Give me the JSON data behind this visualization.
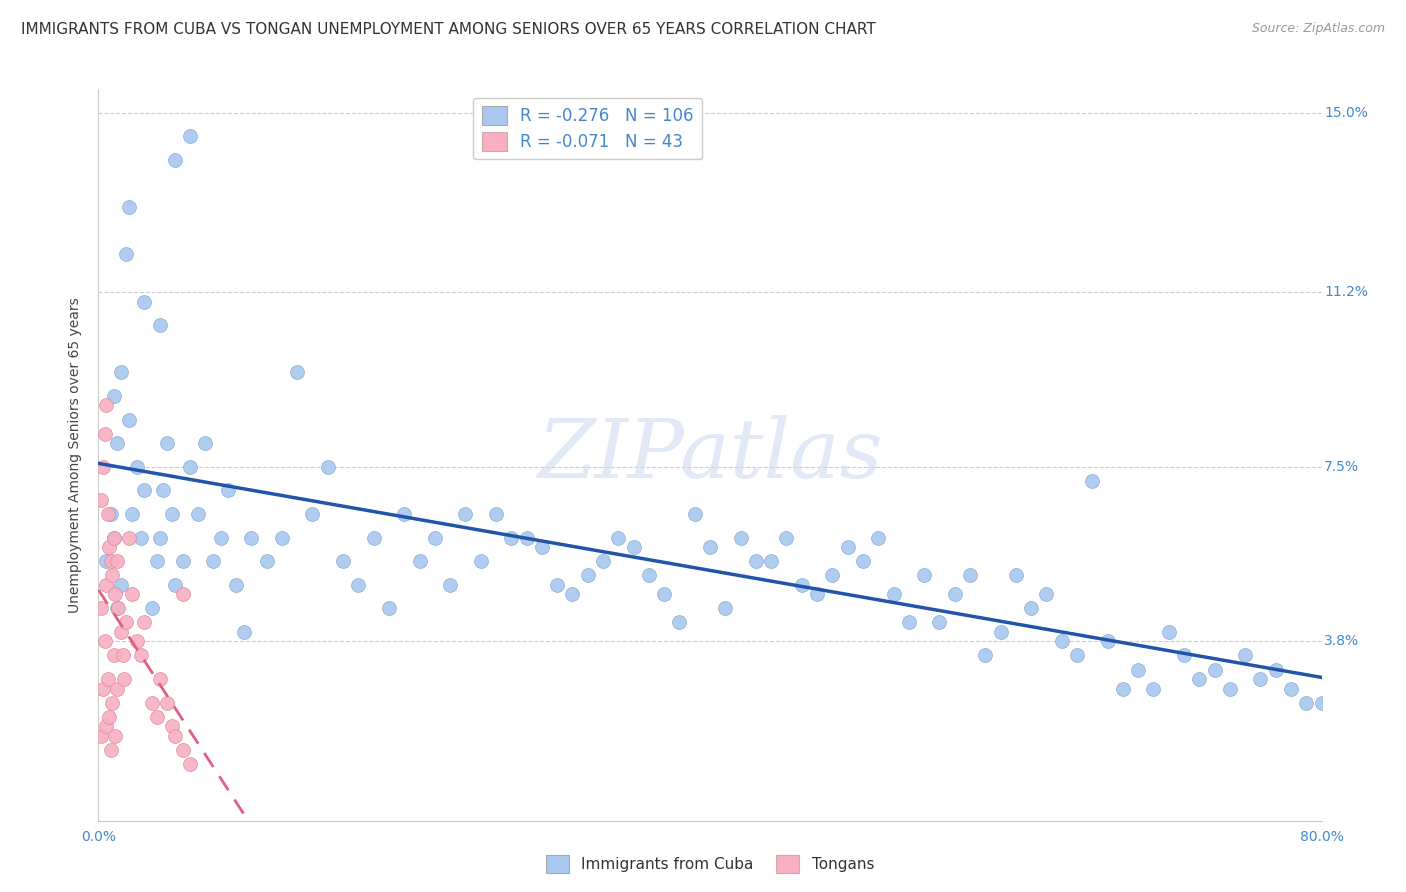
{
  "title": "IMMIGRANTS FROM CUBA VS TONGAN UNEMPLOYMENT AMONG SENIORS OVER 65 YEARS CORRELATION CHART",
  "source": "Source: ZipAtlas.com",
  "ylabel": "Unemployment Among Seniors over 65 years",
  "xmin": 0.0,
  "xmax": 0.8,
  "ymin": 0.0,
  "ymax": 0.155,
  "cuba_color": "#a8c8f0",
  "cuba_edge_color": "#7aaad0",
  "tonga_color": "#f8b0c0",
  "tonga_edge_color": "#e080a0",
  "cuba_line_color": "#2255aa",
  "tonga_line_color": "#e06080",
  "legend_cuba_R": "-0.276",
  "legend_cuba_N": "106",
  "legend_tonga_R": "-0.071",
  "legend_tonga_N": "43",
  "cuba_scatter_x": [
    0.005,
    0.008,
    0.01,
    0.012,
    0.015,
    0.01,
    0.012,
    0.015,
    0.018,
    0.02,
    0.022,
    0.025,
    0.028,
    0.03,
    0.035,
    0.038,
    0.04,
    0.042,
    0.045,
    0.048,
    0.05,
    0.055,
    0.06,
    0.065,
    0.07,
    0.075,
    0.08,
    0.085,
    0.09,
    0.095,
    0.1,
    0.11,
    0.12,
    0.13,
    0.14,
    0.15,
    0.16,
    0.17,
    0.18,
    0.19,
    0.2,
    0.21,
    0.22,
    0.23,
    0.24,
    0.25,
    0.26,
    0.27,
    0.28,
    0.29,
    0.3,
    0.31,
    0.32,
    0.33,
    0.34,
    0.35,
    0.36,
    0.37,
    0.38,
    0.39,
    0.4,
    0.41,
    0.42,
    0.43,
    0.44,
    0.45,
    0.46,
    0.47,
    0.48,
    0.49,
    0.5,
    0.51,
    0.52,
    0.53,
    0.54,
    0.55,
    0.56,
    0.57,
    0.58,
    0.59,
    0.6,
    0.61,
    0.62,
    0.63,
    0.64,
    0.65,
    0.66,
    0.67,
    0.68,
    0.69,
    0.7,
    0.71,
    0.72,
    0.73,
    0.74,
    0.75,
    0.76,
    0.77,
    0.78,
    0.79,
    0.8,
    0.02,
    0.03,
    0.04,
    0.05,
    0.06
  ],
  "cuba_scatter_y": [
    0.055,
    0.065,
    0.06,
    0.045,
    0.05,
    0.09,
    0.08,
    0.095,
    0.12,
    0.085,
    0.065,
    0.075,
    0.06,
    0.07,
    0.045,
    0.055,
    0.06,
    0.07,
    0.08,
    0.065,
    0.05,
    0.055,
    0.075,
    0.065,
    0.08,
    0.055,
    0.06,
    0.07,
    0.05,
    0.04,
    0.06,
    0.055,
    0.06,
    0.095,
    0.065,
    0.075,
    0.055,
    0.05,
    0.06,
    0.045,
    0.065,
    0.055,
    0.06,
    0.05,
    0.065,
    0.055,
    0.065,
    0.06,
    0.06,
    0.058,
    0.05,
    0.048,
    0.052,
    0.055,
    0.06,
    0.058,
    0.052,
    0.048,
    0.042,
    0.065,
    0.058,
    0.045,
    0.06,
    0.055,
    0.055,
    0.06,
    0.05,
    0.048,
    0.052,
    0.058,
    0.055,
    0.06,
    0.048,
    0.042,
    0.052,
    0.042,
    0.048,
    0.052,
    0.035,
    0.04,
    0.052,
    0.045,
    0.048,
    0.038,
    0.035,
    0.072,
    0.038,
    0.028,
    0.032,
    0.028,
    0.04,
    0.035,
    0.03,
    0.032,
    0.028,
    0.035,
    0.03,
    0.032,
    0.028,
    0.025,
    0.025,
    0.13,
    0.11,
    0.105,
    0.14,
    0.145
  ],
  "tonga_scatter_x": [
    0.002,
    0.002,
    0.002,
    0.003,
    0.003,
    0.004,
    0.004,
    0.005,
    0.005,
    0.005,
    0.006,
    0.006,
    0.007,
    0.007,
    0.008,
    0.008,
    0.009,
    0.009,
    0.01,
    0.01,
    0.011,
    0.011,
    0.012,
    0.012,
    0.013,
    0.015,
    0.016,
    0.017,
    0.018,
    0.02,
    0.022,
    0.025,
    0.028,
    0.03,
    0.035,
    0.038,
    0.04,
    0.045,
    0.048,
    0.05,
    0.055,
    0.06,
    0.055
  ],
  "tonga_scatter_y": [
    0.068,
    0.045,
    0.018,
    0.075,
    0.028,
    0.082,
    0.038,
    0.088,
    0.05,
    0.02,
    0.065,
    0.03,
    0.058,
    0.022,
    0.055,
    0.015,
    0.052,
    0.025,
    0.06,
    0.035,
    0.048,
    0.018,
    0.055,
    0.028,
    0.045,
    0.04,
    0.035,
    0.03,
    0.042,
    0.06,
    0.048,
    0.038,
    0.035,
    0.042,
    0.025,
    0.022,
    0.03,
    0.025,
    0.02,
    0.018,
    0.015,
    0.012,
    0.048
  ],
  "watermark_text": "ZIPatlas",
  "background_color": "#ffffff",
  "grid_color": "#cccccc",
  "title_fontsize": 11,
  "axis_label_fontsize": 10,
  "tick_fontsize": 10,
  "legend_fontsize": 12,
  "source_fontsize": 9
}
